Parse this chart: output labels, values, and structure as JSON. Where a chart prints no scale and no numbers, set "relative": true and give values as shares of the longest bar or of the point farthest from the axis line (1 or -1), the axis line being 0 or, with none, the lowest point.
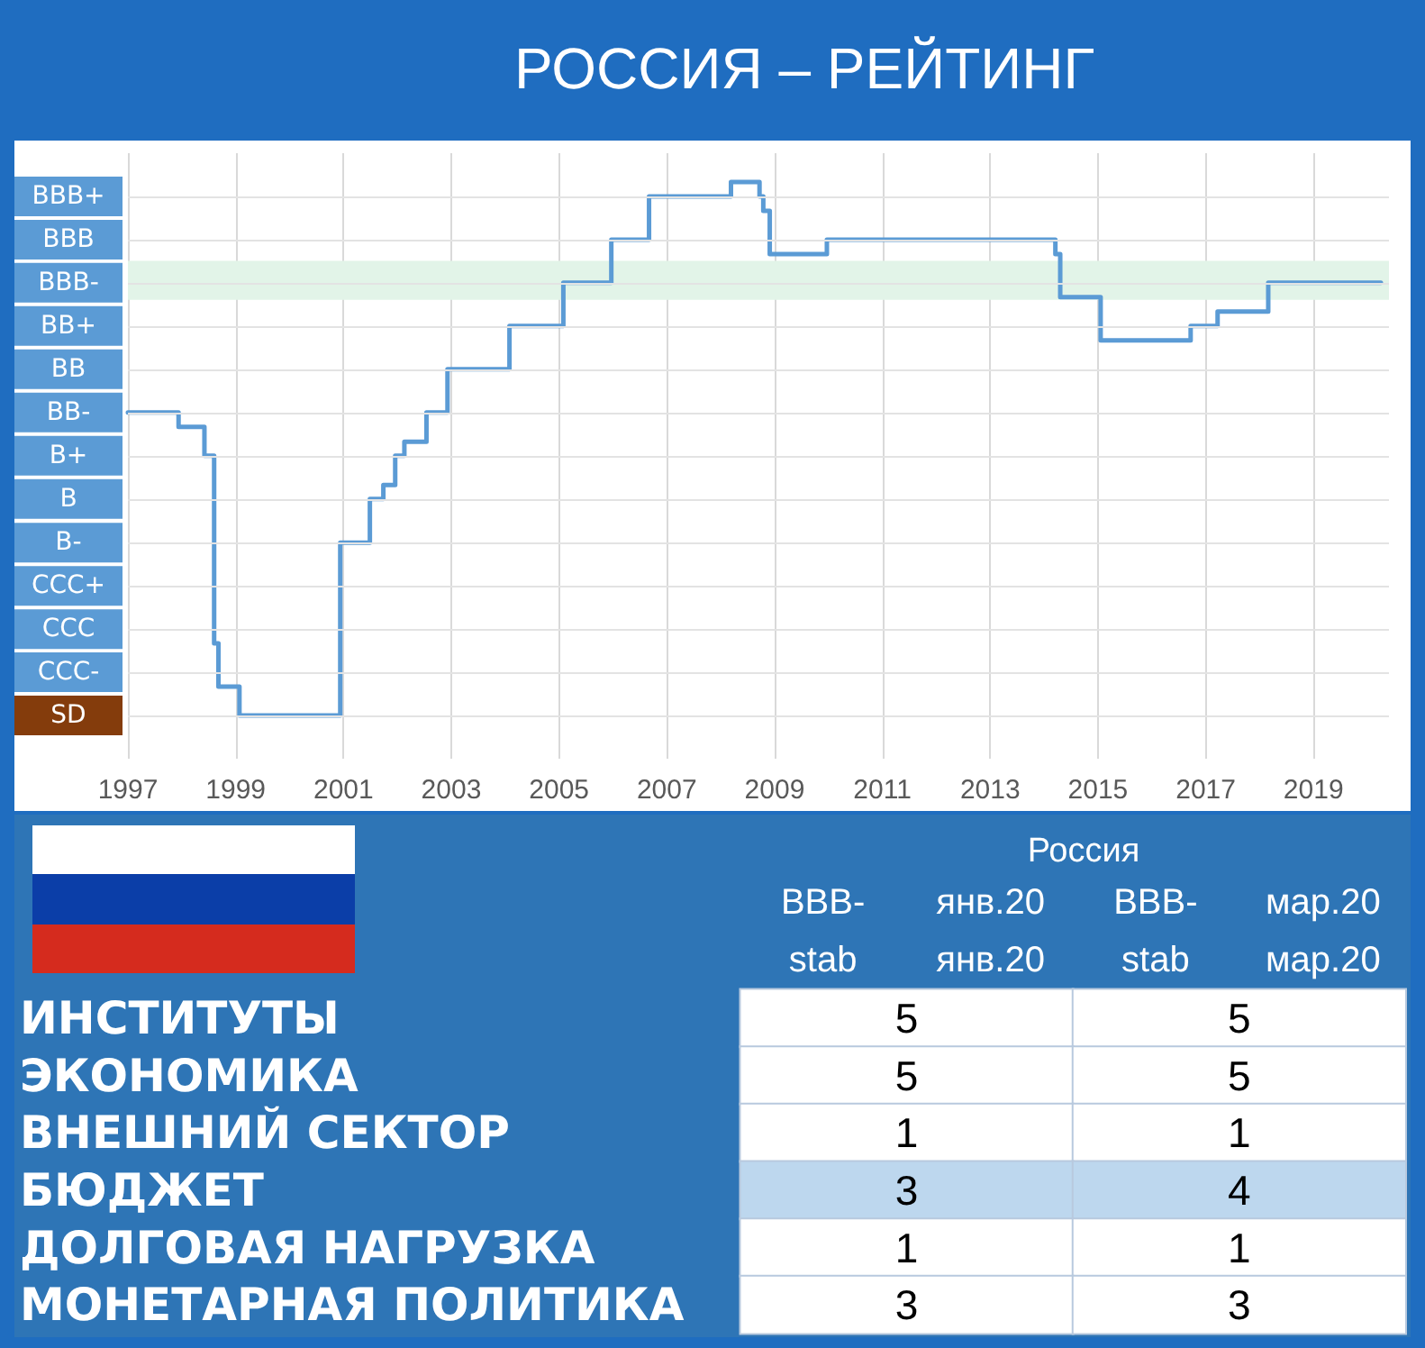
{
  "chart_data": [
    {
      "type": "step",
      "title": "РОССИЯ – РЕЙТИНГ",
      "relative": true,
      "x": [
        1997.0,
        1997.94,
        1998.42,
        1998.6,
        1998.68,
        1999.07,
        2000.94,
        2001.49,
        2001.74,
        2001.96,
        2002.13,
        2002.54,
        2002.93,
        2004.08,
        2005.08,
        2005.97,
        2006.67,
        2008.19,
        2008.72,
        2008.79,
        2008.91,
        2009.97,
        2014.21,
        2014.3,
        2015.05,
        2016.72,
        2017.22,
        2018.16,
        2020.25
      ],
      "values": [
        0.568,
        0.541,
        0.487,
        0.135,
        0.054,
        0,
        0.324,
        0.406,
        0.432,
        0.487,
        0.513,
        0.568,
        0.649,
        0.73,
        0.811,
        0.892,
        0.973,
        1,
        0.973,
        0.946,
        0.865,
        0.892,
        0.865,
        0.784,
        0.703,
        0.73,
        0.757,
        0.811,
        0.811
      ],
      "color": "#5b9bd5",
      "marker": "none",
      "xlim": [
        1997,
        2020.4
      ],
      "xticks": [
        1997,
        1999,
        2001,
        2003,
        2005,
        2007,
        2009,
        2011,
        2013,
        2015,
        2017,
        2019
      ],
      "ref_lines": [
        {
          "axis": "y",
          "value": 0,
          "label": "SD"
        },
        {
          "axis": "y",
          "value": 0.081,
          "label": "CCC-"
        },
        {
          "axis": "y",
          "value": 0.162,
          "label": "CCC"
        },
        {
          "axis": "y",
          "value": 0.243,
          "label": "CCC+"
        },
        {
          "axis": "y",
          "value": 0.324,
          "label": "B-"
        },
        {
          "axis": "y",
          "value": 0.406,
          "label": "B"
        },
        {
          "axis": "y",
          "value": 0.487,
          "label": "B+"
        },
        {
          "axis": "y",
          "value": 0.568,
          "label": "BB-"
        },
        {
          "axis": "y",
          "value": 0.649,
          "label": "BB"
        },
        {
          "axis": "y",
          "value": 0.73,
          "label": "BB+"
        },
        {
          "axis": "y",
          "value": 0.811,
          "label": "BBB-"
        },
        {
          "axis": "y",
          "value": 0.892,
          "label": "BBB"
        },
        {
          "axis": "y",
          "value": 0.973,
          "label": "BBB+"
        }
      ],
      "bands": [
        {
          "axis": "y",
          "from": 0.779,
          "to": 0.852,
          "color": "#e2f4e8"
        }
      ],
      "grid": "x"
    },
    {
      "type": "heatmap",
      "title": "Россия",
      "categories": [
        "BBB- янв.20\nstab янв.20",
        "BBB- мар.20\nstab мар.20"
      ],
      "y_categories": [
        "ИНСТИТУТЫ",
        "ЭКОНОМИКА",
        "ВНЕШНИЙ СЕКТОР",
        "БЮДЖЕТ",
        "ДОЛГОВАЯ НАГРУЗКА",
        "МОНЕТАРНАЯ ПОЛИТИКА"
      ],
      "cells": [
        [
          5,
          5
        ],
        [
          5,
          5
        ],
        [
          1,
          1
        ],
        [
          3,
          4
        ],
        [
          1,
          1
        ],
        [
          3,
          3
        ]
      ],
      "colors": [
        [
          "#ffffff",
          "#ffffff"
        ],
        [
          "#ffffff",
          "#ffffff"
        ],
        [
          "#ffffff",
          "#ffffff"
        ],
        [
          "#bdd7ee",
          "#bdd7ee"
        ],
        [
          "#ffffff",
          "#ffffff"
        ],
        [
          "#ffffff",
          "#ffffff"
        ]
      ],
      "data_labels": true
    }
  ]
}
